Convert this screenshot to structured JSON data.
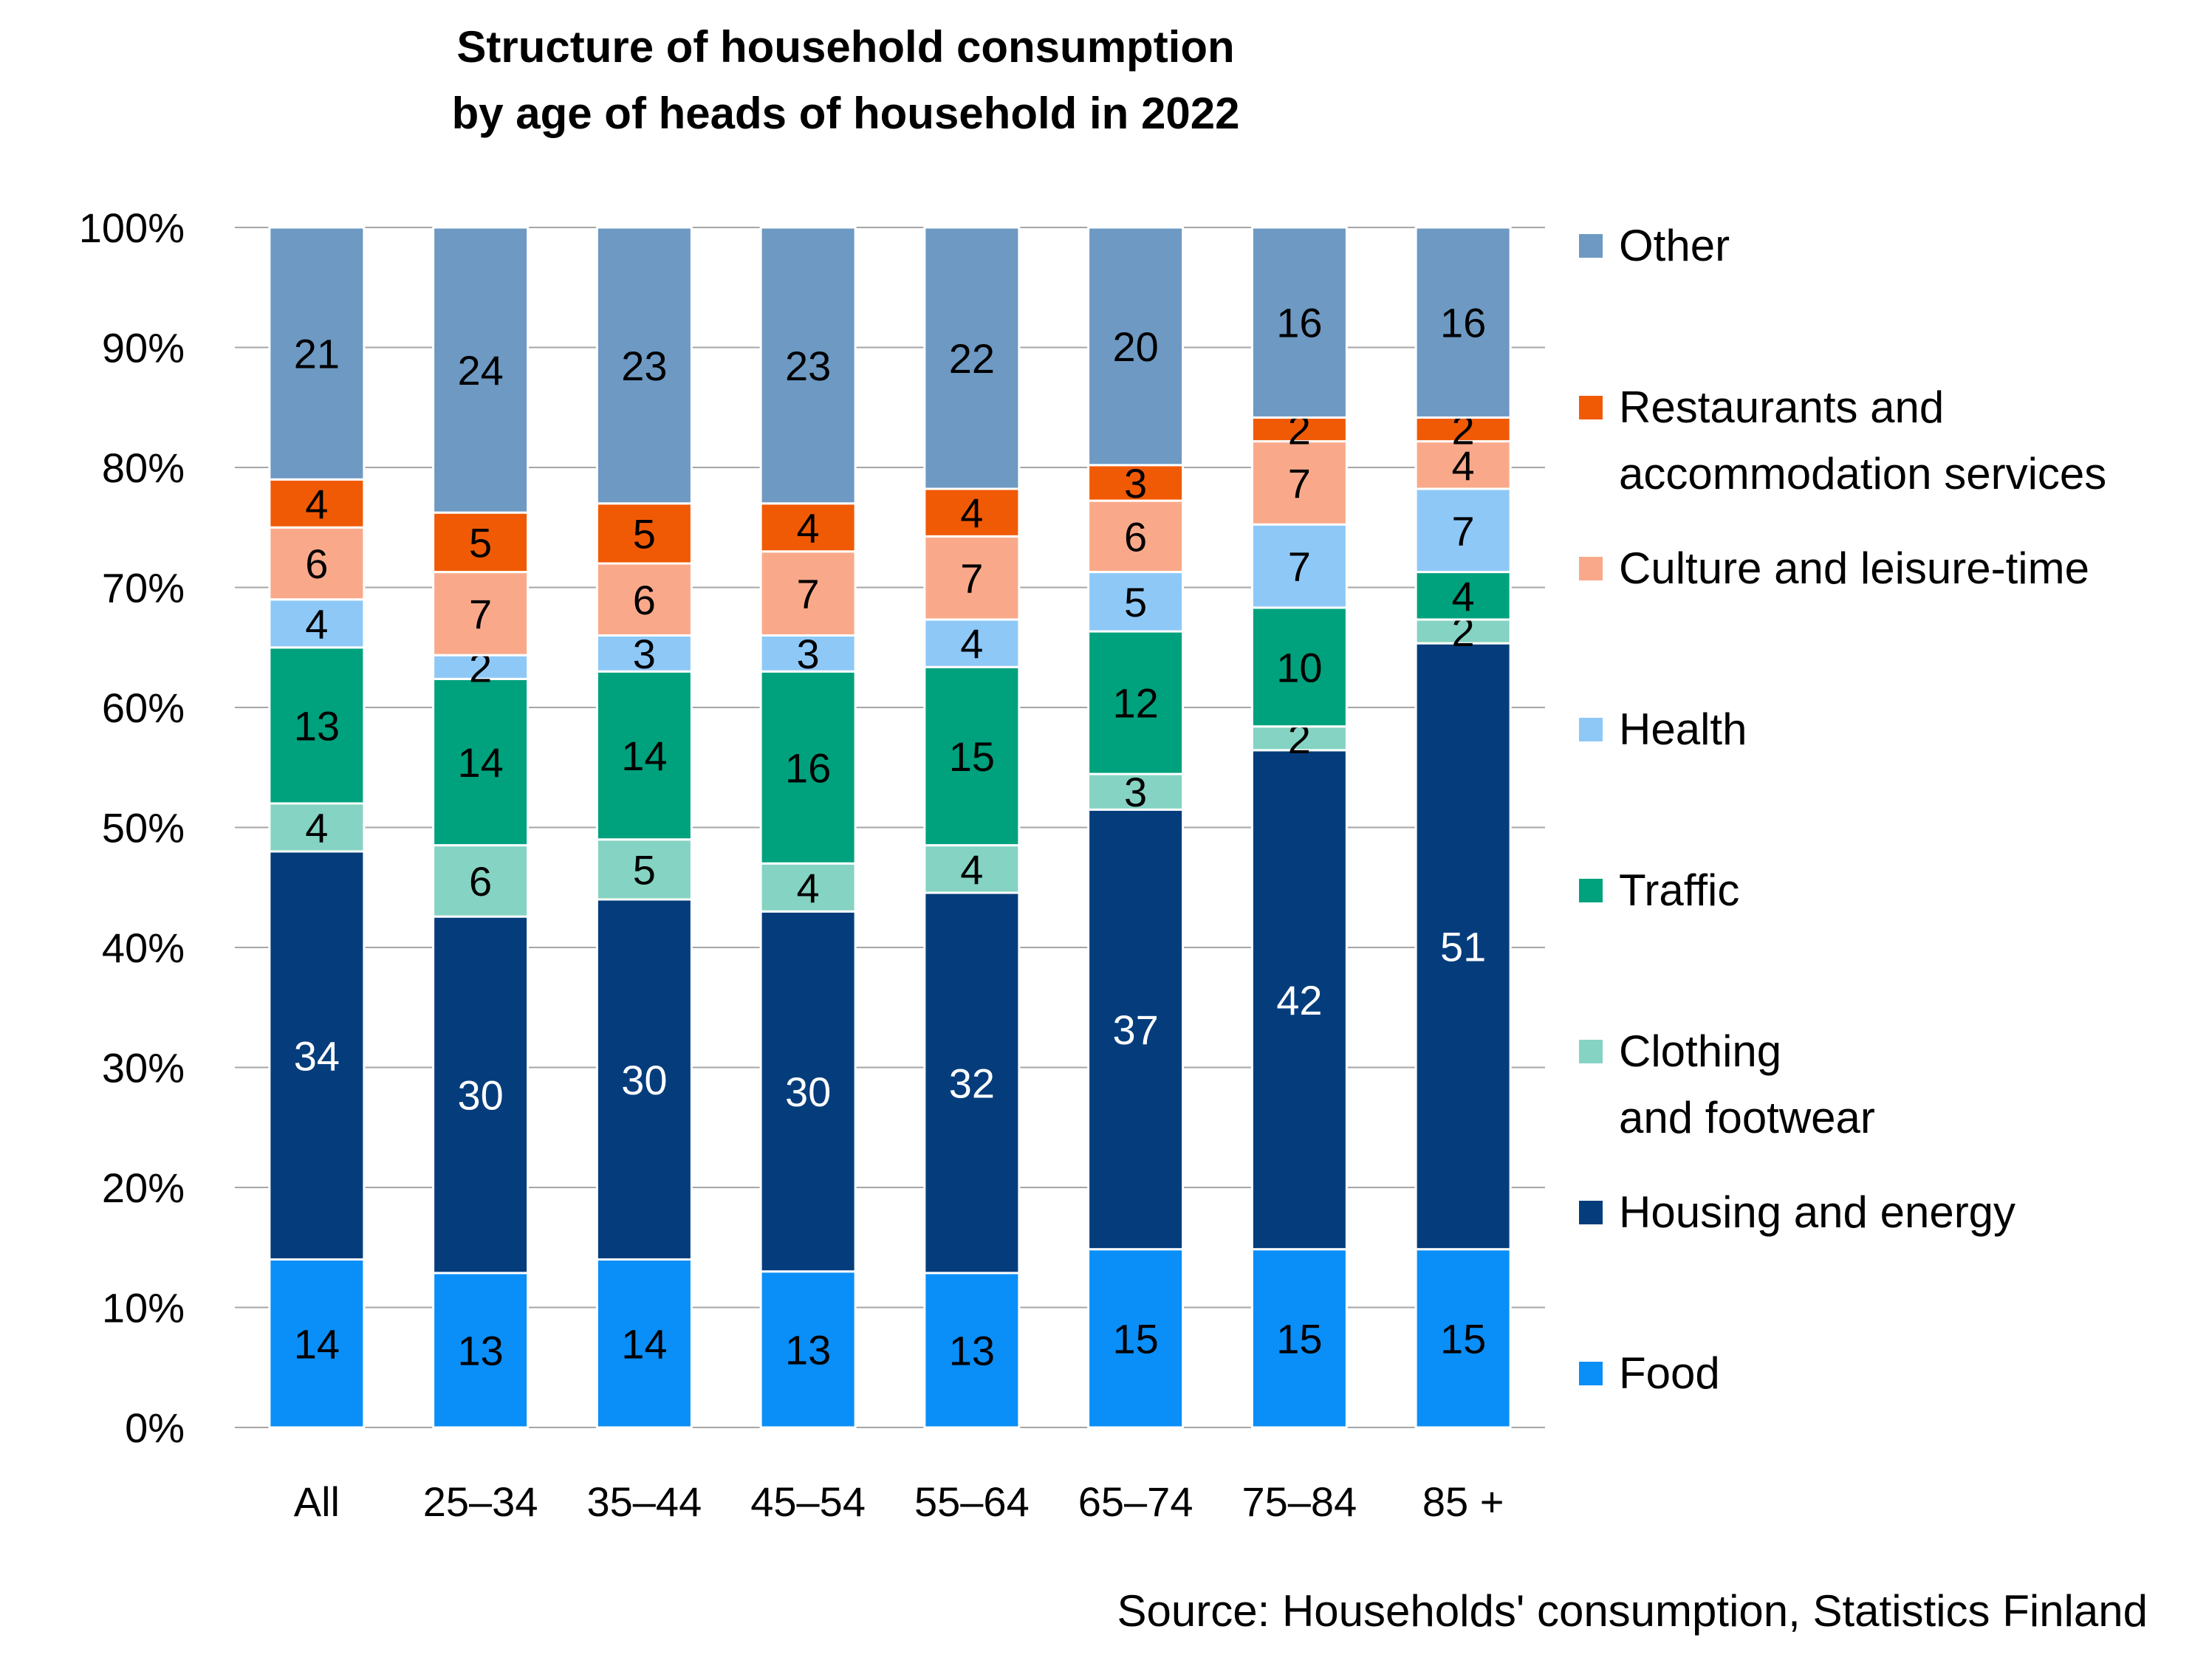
{
  "chart_data": {
    "type": "bar",
    "stacked": true,
    "title": "Structure of household consumption",
    "subtitle": "by age of heads of household in 2022",
    "categories": [
      "All",
      "25–34",
      "35–44",
      "45–54",
      "55–64",
      "65–74",
      "75–84",
      "85 +"
    ],
    "ylim": [
      0,
      100
    ],
    "yticks": [
      "0%",
      "10%",
      "20%",
      "30%",
      "40%",
      "50%",
      "60%",
      "70%",
      "80%",
      "90%",
      "100%"
    ],
    "grid": true,
    "legend_position": "right",
    "series": [
      {
        "name": "Food",
        "color": "#0a8ef7",
        "label_color": "#000000",
        "values": [
          14,
          13,
          14,
          13,
          13,
          15,
          15,
          15
        ]
      },
      {
        "name": "Housing and energy",
        "color": "#053d7c",
        "label_color": "#ffffff",
        "values": [
          34,
          30,
          30,
          30,
          32,
          37,
          42,
          51
        ]
      },
      {
        "name": "Clothing and footwear",
        "color": "#85d3c2",
        "label_color": "#000000",
        "values": [
          4,
          6,
          5,
          4,
          4,
          3,
          2,
          2
        ]
      },
      {
        "name": "Traffic",
        "color": "#00a17d",
        "label_color": "#000000",
        "values": [
          13,
          14,
          14,
          16,
          15,
          12,
          10,
          4
        ]
      },
      {
        "name": "Health",
        "color": "#8ec8f7",
        "label_color": "#000000",
        "values": [
          4,
          2,
          3,
          3,
          4,
          5,
          7,
          7
        ]
      },
      {
        "name": "Culture and leisure-time",
        "color": "#f9a98a",
        "label_color": "#000000",
        "values": [
          6,
          7,
          6,
          7,
          7,
          6,
          7,
          4
        ]
      },
      {
        "name": "Restaurants and accommodation services",
        "color": "#f05a05",
        "label_color": "#000000",
        "values": [
          4,
          5,
          5,
          4,
          4,
          3,
          2,
          2
        ]
      },
      {
        "name": "Other",
        "color": "#6d99c3",
        "label_color": "#000000",
        "values": [
          21,
          24,
          23,
          23,
          22,
          20,
          16,
          16
        ]
      }
    ],
    "legend": [
      {
        "lines": [
          "Other"
        ]
      },
      {
        "lines": [
          "Restaurants and",
          "accommodation services"
        ]
      },
      {
        "lines": [
          "Culture and leisure-time"
        ]
      },
      {
        "lines": [
          "Health"
        ]
      },
      {
        "lines": [
          "Traffic"
        ]
      },
      {
        "lines": [
          "Clothing",
          "and footwear"
        ]
      },
      {
        "lines": [
          "Housing and energy"
        ]
      },
      {
        "lines": [
          "Food"
        ]
      }
    ],
    "source": "Source: Households' consumption, Statistics Finland"
  }
}
